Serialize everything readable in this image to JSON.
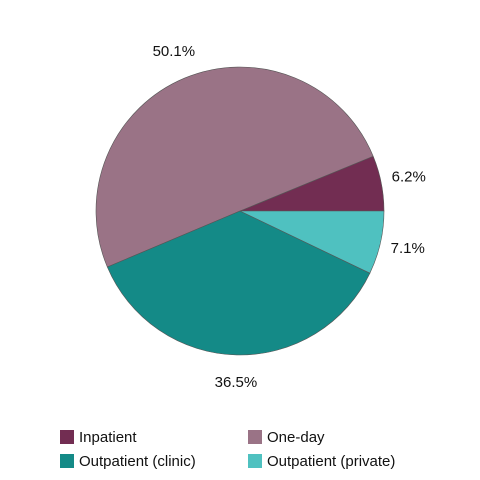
{
  "chart_data": {
    "type": "pie",
    "categories": [
      "Inpatient",
      "One-day",
      "Outpatient (clinic)",
      "Outpatient (private)"
    ],
    "values": [
      6.2,
      50.1,
      36.5,
      7.1
    ],
    "value_labels": [
      "6.2%",
      "50.1%",
      "36.5%",
      "7.1%"
    ],
    "colors": [
      "#722d52",
      "#9a7386",
      "#148a87",
      "#4fc1c0"
    ]
  }
}
